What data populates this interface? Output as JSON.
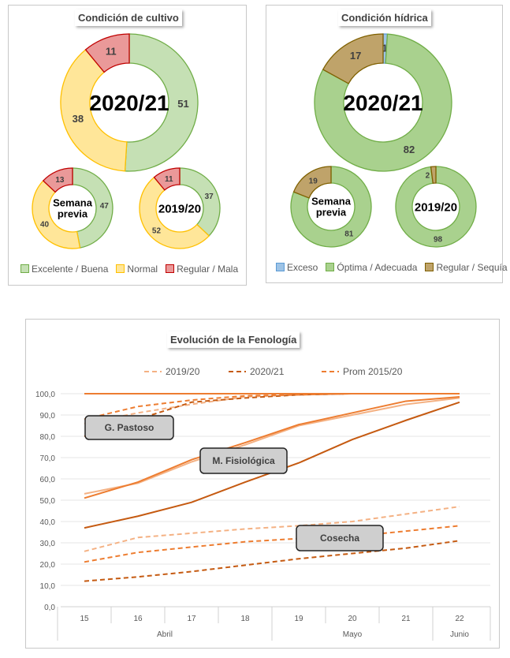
{
  "chart_data": [
    {
      "type": "donut",
      "title": "Condición de cultivo",
      "legend": [
        "Excelente / Buena",
        "Normal",
        "Regular / Mala"
      ],
      "colors": {
        "fill": [
          "#c5e0b4",
          "#ffe699",
          "#ea9999"
        ],
        "stroke": [
          "#70ad47",
          "#ffc000",
          "#c00000"
        ]
      },
      "rings": [
        {
          "center_label": "2020/21",
          "values": [
            51,
            38,
            11
          ]
        },
        {
          "center_label": "Semana previa",
          "values": [
            47,
            40,
            13
          ]
        },
        {
          "center_label": "2019/20",
          "values": [
            37,
            52,
            11
          ]
        }
      ]
    },
    {
      "type": "donut",
      "title": "Condición hídrica",
      "legend": [
        "Exceso",
        "Óptima / Adecuada",
        "Regular / Sequía"
      ],
      "colors": {
        "fill": [
          "#9dc3e6",
          "#a9d18e",
          "#bfa36a"
        ],
        "stroke": [
          "#5b9bd5",
          "#70ad47",
          "#7f6000"
        ]
      },
      "rings": [
        {
          "center_label": "2020/21",
          "values": [
            1,
            82,
            17
          ]
        },
        {
          "center_label": "Semana previa",
          "values": [
            0,
            81,
            19
          ]
        },
        {
          "center_label": "2019/20",
          "values": [
            0,
            98,
            2
          ]
        }
      ]
    },
    {
      "type": "line",
      "title": "Evolución de la Fenología",
      "categories": [
        "15",
        "16",
        "17",
        "18",
        "19",
        "20",
        "21",
        "22"
      ],
      "months": [
        {
          "label": "Abril",
          "span": 4
        },
        {
          "label": "Mayo",
          "span": 3
        },
        {
          "label": "Junio",
          "span": 1
        }
      ],
      "ylim": [
        0,
        100
      ],
      "yticks": [
        "0,0",
        "10,0",
        "20,0",
        "30,0",
        "40,0",
        "50,0",
        "60,0",
        "70,0",
        "80,0",
        "90,0",
        "100,0"
      ],
      "legend": [
        "2019/20",
        "2020/21",
        "Prom 2015/20"
      ],
      "legend_colors": [
        "#f4b183",
        "#c55a11",
        "#ed7d31"
      ],
      "annotations": [
        "G. Pastoso",
        "M. Fisiológica",
        "Cosecha"
      ],
      "series": [
        {
          "name": "2019/20",
          "stage": "G. Pastoso",
          "dashed": true,
          "values": [
            86,
            91,
            95,
            98.5,
            99.5,
            100,
            100,
            100
          ]
        },
        {
          "name": "2020/21",
          "stage": "G. Pastoso",
          "dashed": true,
          "values": [
            80,
            88,
            96,
            98,
            99.5,
            100,
            100,
            100
          ]
        },
        {
          "name": "Prom 2015/20",
          "stage": "G. Pastoso",
          "dashed": true,
          "values": [
            88,
            94,
            97,
            99,
            99.5,
            100,
            100,
            100
          ]
        },
        {
          "name": "Prom 2015/20",
          "stage": "",
          "dashed": false,
          "values": [
            100,
            100,
            100,
            100,
            100,
            100,
            100,
            100
          ]
        },
        {
          "name": "2019/20",
          "stage": "M. Fisiológica",
          "dashed": false,
          "values": [
            53,
            58,
            68,
            76,
            85,
            90,
            95,
            98
          ]
        },
        {
          "name": "2020/21",
          "stage": "M. Fisiológica",
          "dashed": false,
          "values": [
            37,
            42.5,
            49,
            58.5,
            67.5,
            78.5,
            87.5,
            96
          ]
        },
        {
          "name": "Prom 2015/20",
          "stage": "M. Fisiológica",
          "dashed": false,
          "values": [
            51,
            58.5,
            69,
            77,
            85.5,
            91,
            96.5,
            98.5
          ]
        },
        {
          "name": "2019/20",
          "stage": "Cosecha",
          "dashed": true,
          "values": [
            26,
            32.5,
            34.5,
            36.5,
            38,
            40,
            43.5,
            47
          ]
        },
        {
          "name": "2020/21",
          "stage": "Cosecha",
          "dashed": true,
          "values": [
            12,
            14,
            16.5,
            19.5,
            22.5,
            25,
            27.5,
            31
          ]
        },
        {
          "name": "Prom 2015/20",
          "stage": "Cosecha",
          "dashed": true,
          "values": [
            21,
            25.5,
            28,
            30.5,
            32,
            33,
            35.5,
            38
          ]
        }
      ]
    }
  ]
}
